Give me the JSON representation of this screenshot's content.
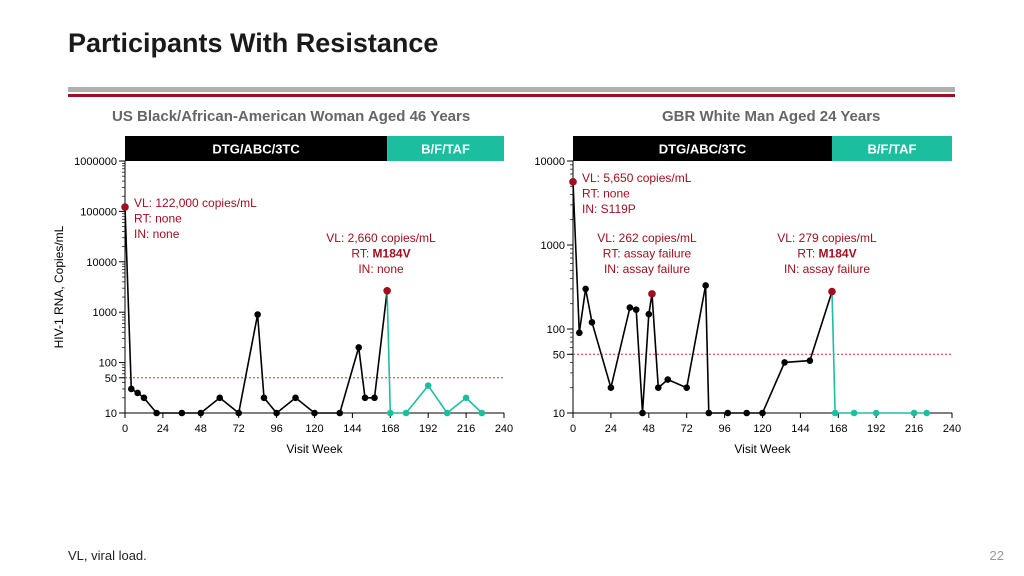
{
  "page": {
    "title": "Participants With Resistance",
    "footnote": "VL, viral load.",
    "page_number": "22"
  },
  "colors": {
    "black_series": "#000000",
    "teal_series": "#1bbfa0",
    "marker_highlight": "#a00f1e",
    "annotation_text": "#a00f1e",
    "regimen_dtg_bg": "#000000",
    "regimen_bftaf_bg": "#1bbfa0",
    "reference_line": "#c0392b"
  },
  "chart_data": [
    {
      "type": "line",
      "title": "US Black/African-American Woman Aged 46 Years",
      "xlabel": "Visit Week",
      "ylabel": "HIV-1 RNA, Copies/mL",
      "yscale": "log",
      "xlim": [
        0,
        240
      ],
      "ylim": [
        10,
        1000000
      ],
      "x_ticks": [
        0,
        24,
        48,
        72,
        96,
        120,
        144,
        168,
        192,
        216,
        240
      ],
      "y_ticks": [
        {
          "value": 10,
          "label": "10"
        },
        {
          "value": 50,
          "label": "50"
        },
        {
          "value": 100,
          "label": "100"
        },
        {
          "value": 1000,
          "label": "1000"
        },
        {
          "value": 10000,
          "label": "10000"
        },
        {
          "value": 100000,
          "label": "100000"
        },
        {
          "value": 1000000,
          "label": "1000000"
        }
      ],
      "reference_line": 50,
      "regimens": [
        {
          "label": "DTG/ABC/3TC",
          "start": 0,
          "end": 166,
          "color": "#000000"
        },
        {
          "label": "B/F/TAF",
          "start": 166,
          "end": 240,
          "color": "#1bbfa0"
        }
      ],
      "series": [
        {
          "color": "#000000",
          "points": [
            [
              0,
              122000
            ],
            [
              4,
              30
            ],
            [
              8,
              25
            ],
            [
              12,
              20
            ],
            [
              20,
              10
            ],
            [
              36,
              10
            ],
            [
              48,
              10
            ],
            [
              60,
              20
            ],
            [
              72,
              10
            ],
            [
              84,
              900
            ],
            [
              88,
              20
            ],
            [
              96,
              10
            ],
            [
              108,
              20
            ],
            [
              120,
              10
            ],
            [
              136,
              10
            ],
            [
              148,
              200
            ],
            [
              152,
              20
            ],
            [
              158,
              20
            ],
            [
              166,
              2660
            ]
          ]
        },
        {
          "color": "#1bbfa0",
          "points": [
            [
              166,
              2660
            ],
            [
              168,
              10
            ],
            [
              178,
              10
            ],
            [
              192,
              35
            ],
            [
              204,
              10
            ],
            [
              216,
              20
            ],
            [
              226,
              10
            ]
          ]
        }
      ],
      "highlighted_points": [
        [
          0,
          122000
        ],
        [
          166,
          2660
        ]
      ],
      "annotations": [
        {
          "lines": [
            {
              "text": "VL: 122,000 copies/mL"
            },
            {
              "text": "RT: none"
            },
            {
              "text": "IN: none"
            }
          ]
        },
        {
          "lines": [
            {
              "text": "VL: 2,660 copies/mL"
            },
            {
              "prefix": "RT: ",
              "bold": "M184V"
            },
            {
              "text": "IN: none"
            }
          ]
        }
      ]
    },
    {
      "type": "line",
      "title": "GBR White Man Aged 24 Years",
      "xlabel": "Visit Week",
      "ylabel": "",
      "yscale": "log",
      "xlim": [
        0,
        240
      ],
      "ylim": [
        10,
        10000
      ],
      "x_ticks": [
        0,
        24,
        48,
        72,
        96,
        120,
        144,
        168,
        192,
        216,
        240
      ],
      "y_ticks": [
        {
          "value": 10,
          "label": "10"
        },
        {
          "value": 50,
          "label": "50"
        },
        {
          "value": 100,
          "label": "100"
        },
        {
          "value": 1000,
          "label": "1000"
        },
        {
          "value": 10000,
          "label": "10000"
        }
      ],
      "reference_line": 50,
      "regimens": [
        {
          "label": "DTG/ABC/3TC",
          "start": 0,
          "end": 164,
          "color": "#000000"
        },
        {
          "label": "B/F/TAF",
          "start": 164,
          "end": 240,
          "color": "#1bbfa0"
        }
      ],
      "series": [
        {
          "color": "#000000",
          "points": [
            [
              0,
              5650
            ],
            [
              4,
              90
            ],
            [
              8,
              300
            ],
            [
              12,
              120
            ],
            [
              24,
              20
            ],
            [
              36,
              180
            ],
            [
              40,
              170
            ],
            [
              44,
              10
            ],
            [
              48,
              150
            ],
            [
              50,
              262
            ],
            [
              54,
              20
            ],
            [
              60,
              25
            ],
            [
              72,
              20
            ],
            [
              84,
              330
            ],
            [
              86,
              10
            ],
            [
              98,
              10
            ],
            [
              110,
              10
            ],
            [
              120,
              10
            ],
            [
              134,
              40
            ],
            [
              150,
              42
            ],
            [
              164,
              279
            ]
          ]
        },
        {
          "color": "#1bbfa0",
          "points": [
            [
              164,
              279
            ],
            [
              166,
              10
            ],
            [
              178,
              10
            ],
            [
              192,
              10
            ],
            [
              216,
              10
            ],
            [
              224,
              10
            ]
          ]
        }
      ],
      "highlighted_points": [
        [
          0,
          5650
        ],
        [
          50,
          262
        ],
        [
          164,
          279
        ]
      ],
      "annotations": [
        {
          "lines": [
            {
              "text": "VL: 5,650 copies/mL"
            },
            {
              "text": "RT: none"
            },
            {
              "text": "IN: S119P"
            }
          ]
        },
        {
          "lines": [
            {
              "text": "VL: 262 copies/mL"
            },
            {
              "text": "RT: assay failure"
            },
            {
              "text": "IN: assay failure"
            }
          ]
        },
        {
          "lines": [
            {
              "text": "VL: 279 copies/mL"
            },
            {
              "prefix": "RT: ",
              "bold": "M184V"
            },
            {
              "text": "IN: assay failure"
            }
          ]
        }
      ]
    }
  ]
}
